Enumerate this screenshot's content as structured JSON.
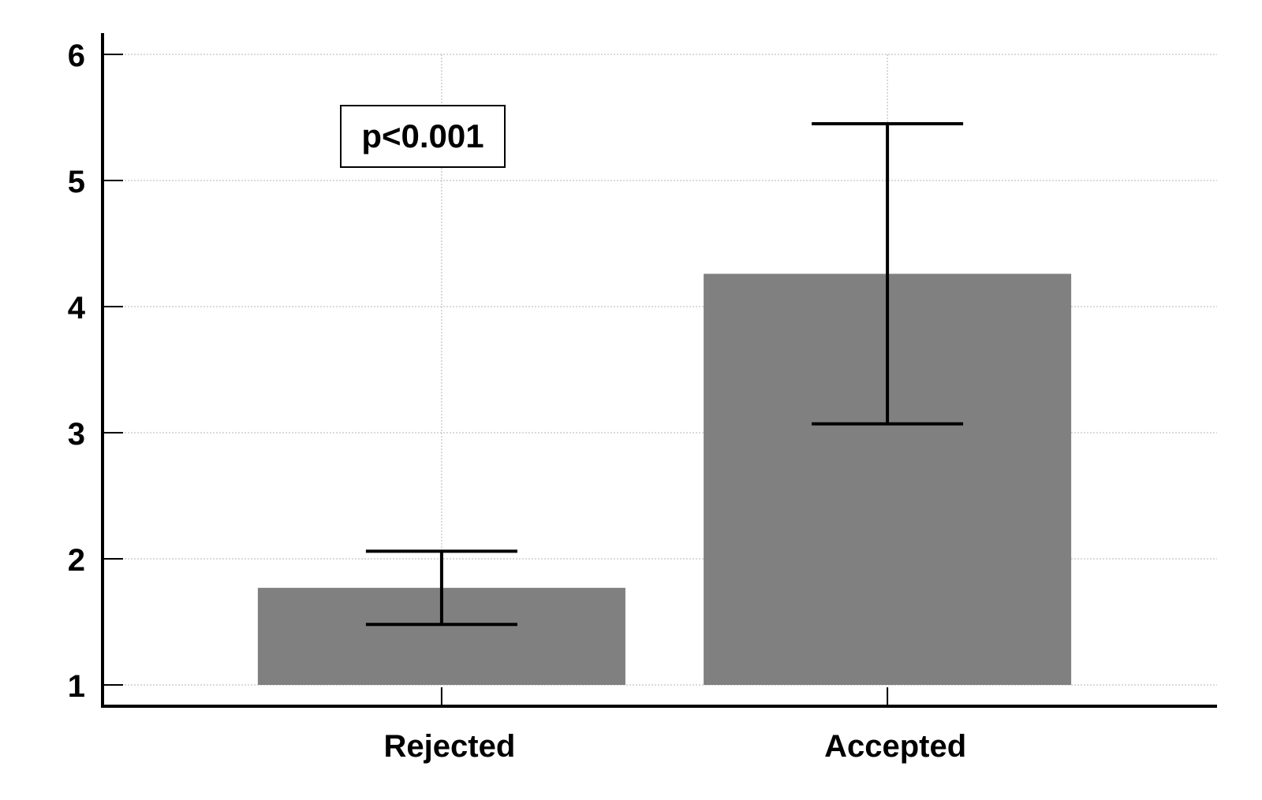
{
  "chart_data": {
    "type": "bar",
    "title": "",
    "xlabel": "",
    "ylabel": "",
    "categories": [
      "Rejected",
      "Accepted"
    ],
    "values": [
      1.77,
      4.26
    ],
    "error_bars": [
      {
        "low": 1.48,
        "high": 2.06
      },
      {
        "low": 3.07,
        "high": 5.45
      }
    ],
    "ylim": [
      1,
      6
    ],
    "yticks": [
      "1",
      "2",
      "3",
      "4",
      "5",
      "6"
    ],
    "grid": true,
    "bar_color": "#808080",
    "annotations": [
      {
        "text": "p<0.001",
        "boxed": true
      }
    ]
  }
}
